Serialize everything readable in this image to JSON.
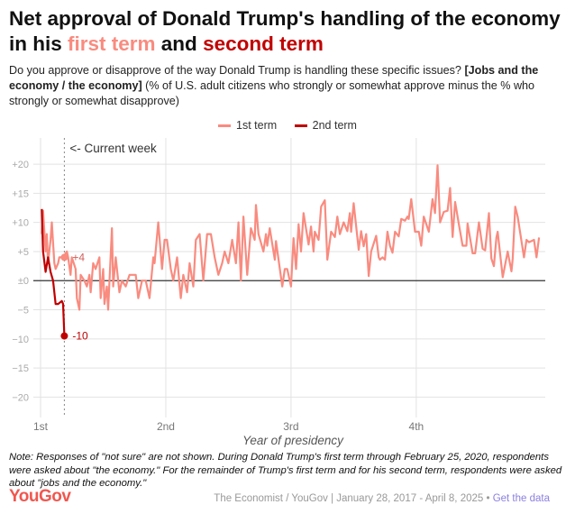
{
  "title": {
    "prefix": "Net approval of Donald Trump's handling of the economy in his ",
    "first": "first term",
    "mid": " and ",
    "second": "second term"
  },
  "subtitle": {
    "text1": "Do you approve or disapprove of the way Donald Trump is handling these specific issues? ",
    "bold": "[Jobs and the economy / the economy]",
    "text2": " (% of U.S. adult citizens who strongly or somewhat approve minus the % who strongly or somewhat disapprove)"
  },
  "note": "Note: Responses of \"not sure\" are not shown. During Donald Trump's first term through February 25, 2020, respondents were asked about \"the economy.\" For the remainder of Trump's first term and for his second term, respondents were asked about \"jobs and the economy.\"",
  "footer": {
    "logo": "YouGov",
    "source": "The Economist / YouGov | January 28, 2017 - April 8, 2025 • ",
    "link": "Get the data"
  },
  "colors": {
    "first": "#f98b7f",
    "second": "#c00000",
    "link": "#8b7fe0",
    "logo": "#f0574f"
  },
  "chart_data": {
    "type": "line",
    "xlabel": "Year of presidency",
    "ylabel": "",
    "xlim": [
      1,
      5.03
    ],
    "ylim": [
      -23.5,
      24.5
    ],
    "grid": true,
    "legend_placement": "top-center",
    "x_ticks": [
      {
        "value": 1,
        "label": "1st"
      },
      {
        "value": 2,
        "label": "2nd"
      },
      {
        "value": 3,
        "label": "3rd"
      },
      {
        "value": 4,
        "label": "4th"
      }
    ],
    "y_ticks": [
      {
        "value": 20,
        "label": "+20"
      },
      {
        "value": 15,
        "label": "+15"
      },
      {
        "value": 10,
        "label": "+10"
      },
      {
        "value": 5,
        "label": "+5"
      },
      {
        "value": 0,
        "label": "±0"
      },
      {
        "value": -5,
        "label": "−5"
      },
      {
        "value": -10,
        "label": "−10"
      },
      {
        "value": -15,
        "label": "−15"
      },
      {
        "value": -20,
        "label": "−20"
      }
    ],
    "annotation": {
      "x": 1.19,
      "label": "<- Current week"
    },
    "series": [
      {
        "name": "1st term",
        "end_label": "+4",
        "end_label_x": 1.19,
        "end_label_y": 4,
        "x": [
          1.01,
          1.02,
          1.04,
          1.05,
          1.06,
          1.08,
          1.09,
          1.11,
          1.12,
          1.14,
          1.15,
          1.18,
          1.21,
          1.22,
          1.24,
          1.25,
          1.28,
          1.29,
          1.31,
          1.32,
          1.35,
          1.37,
          1.39,
          1.4,
          1.42,
          1.44,
          1.47,
          1.48,
          1.5,
          1.51,
          1.53,
          1.54,
          1.57,
          1.58,
          1.6,
          1.63,
          1.65,
          1.68,
          1.71,
          1.76,
          1.78,
          1.81,
          1.84,
          1.87,
          1.9,
          1.91,
          1.94,
          1.97,
          1.99,
          2.01,
          2.04,
          2.06,
          2.09,
          2.12,
          2.14,
          2.17,
          2.19,
          2.22,
          2.24,
          2.27,
          2.3,
          2.33,
          2.36,
          2.39,
          2.42,
          2.45,
          2.47,
          2.5,
          2.53,
          2.56,
          2.58,
          2.6,
          2.62,
          2.65,
          2.68,
          2.71,
          2.72,
          2.74,
          2.78,
          2.8,
          2.81,
          2.83,
          2.87,
          2.88,
          2.93,
          2.95,
          2.97,
          3.0,
          3.02,
          3.04,
          3.06,
          3.08,
          3.1,
          3.14,
          3.16,
          3.18,
          3.19,
          3.22,
          3.24,
          3.27,
          3.29,
          3.32,
          3.35,
          3.37,
          3.39,
          3.42,
          3.45,
          3.47,
          3.48,
          3.5,
          3.54,
          3.56,
          3.58,
          3.6,
          3.62,
          3.64,
          3.68,
          3.7,
          3.71,
          3.73,
          3.75,
          3.77,
          3.79,
          3.81,
          3.83,
          3.86,
          3.88,
          3.91,
          3.93,
          3.94,
          3.96,
          3.99,
          4.02,
          4.04,
          4.06,
          4.1,
          4.13,
          4.15,
          4.17,
          4.19,
          4.22,
          4.25,
          4.27,
          4.29,
          4.31,
          4.34,
          4.37,
          4.4,
          4.41,
          4.44,
          4.45,
          4.47,
          4.5,
          4.53,
          4.55,
          4.58,
          4.6,
          4.62,
          4.64,
          4.65,
          4.69,
          4.73,
          4.76,
          4.77,
          4.79,
          4.81,
          4.86,
          4.88,
          4.9,
          4.94,
          4.96,
          4.98
        ],
        "y": [
          8,
          12,
          5,
          8,
          3,
          7,
          10,
          3,
          2,
          3,
          4,
          4,
          5,
          4,
          1,
          4,
          2,
          -3,
          -5,
          1,
          0,
          -1,
          1,
          -2,
          3,
          2,
          4,
          -3,
          2,
          -4,
          -1,
          -5,
          9,
          -1,
          4,
          -2,
          0,
          -1,
          1,
          1,
          -3,
          0,
          0,
          -3,
          4,
          3,
          10,
          2,
          7,
          7,
          2,
          0,
          4,
          -3,
          1,
          -2,
          3,
          -1,
          7,
          8,
          0,
          8,
          8,
          4,
          1,
          3,
          5,
          3,
          7,
          3,
          10,
          0,
          11,
          1,
          9,
          7,
          13,
          8,
          5,
          8,
          6,
          9,
          3.6,
          6.8,
          -1,
          2,
          2,
          -1,
          7.3,
          2,
          9.7,
          5,
          11.6,
          6.2,
          9.3,
          5,
          8.4,
          7,
          12.7,
          13.8,
          3.6,
          8.4,
          7.5,
          11,
          8,
          10,
          8.5,
          11.6,
          8.4,
          13.3,
          5.3,
          8.5,
          5.9,
          8,
          0.8,
          5,
          7.7,
          4,
          3.6,
          4,
          3.6,
          8.4,
          6,
          4.8,
          8.4,
          7.6,
          10.6,
          10.3,
          11,
          10.6,
          14,
          8.4,
          8.4,
          6,
          11,
          8.4,
          14,
          11.6,
          19.8,
          10,
          11.8,
          12,
          15.9,
          7.5,
          13.5,
          9.7,
          6,
          6,
          9.8,
          6,
          4.7,
          4.7,
          10,
          5.5,
          5.2,
          11.6,
          3.8,
          2.5,
          7.4,
          8.4,
          0.6,
          5,
          1.6,
          3.8,
          12.7,
          11,
          4,
          7,
          6.6,
          7,
          4,
          7.4
        ]
      },
      {
        "name": "2nd term",
        "end_label": "-10",
        "end_label_x": 1.19,
        "end_label_y": -9.5,
        "x": [
          1.01,
          1.02,
          1.04,
          1.06,
          1.08,
          1.1,
          1.12,
          1.14,
          1.17,
          1.18,
          1.19
        ],
        "y": [
          12.3,
          5,
          1.5,
          4,
          1.5,
          0,
          -4,
          -4,
          -3.5,
          -4,
          -9.5
        ]
      }
    ]
  }
}
